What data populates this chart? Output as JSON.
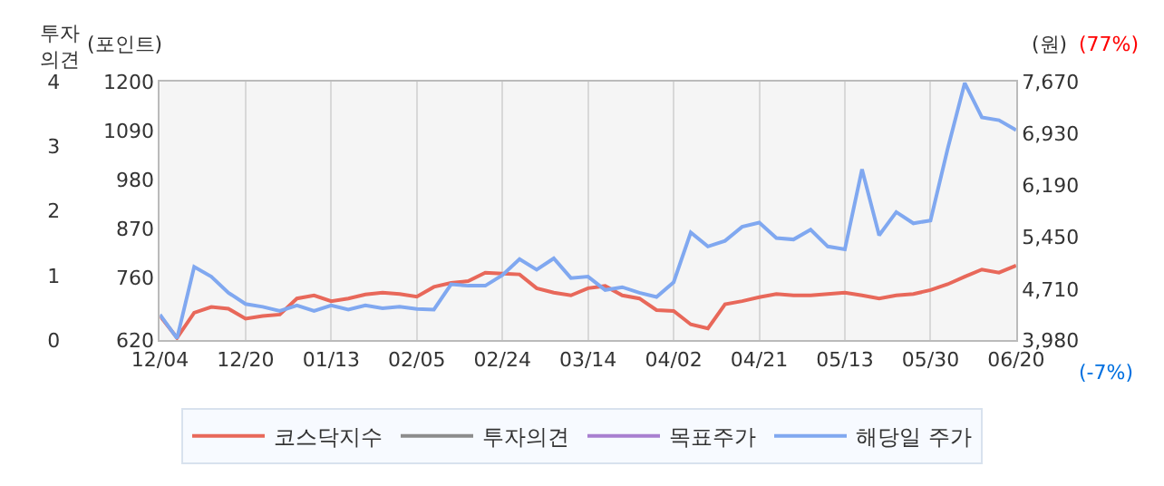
{
  "chart_data": {
    "type": "line",
    "categories": [
      "12/04",
      null,
      null,
      null,
      null,
      "12/20",
      null,
      null,
      null,
      null,
      "01/13",
      null,
      null,
      null,
      null,
      "02/05",
      null,
      null,
      null,
      null,
      "02/24",
      null,
      null,
      null,
      null,
      "03/14",
      null,
      null,
      null,
      null,
      "04/02",
      null,
      null,
      null,
      null,
      "04/21",
      null,
      null,
      null,
      null,
      "05/13",
      null,
      null,
      null,
      null,
      "05/30",
      null,
      null,
      null,
      null,
      "06/20"
    ],
    "ylabel": "투자\n의견",
    "y2label": "(포인트)",
    "y3label": "(원)",
    "ylim": [
      0,
      4
    ],
    "yticks": [
      0,
      1,
      2,
      3,
      4
    ],
    "y2lim": [
      620,
      1200
    ],
    "y2ticks": [
      620,
      760,
      870,
      980,
      1090,
      1200
    ],
    "y3lim": [
      3980,
      7670
    ],
    "y3ticks": [
      {
        "value": 3980,
        "label": "3,980"
      },
      {
        "value": 4710,
        "label": "4,710"
      },
      {
        "value": 5450,
        "label": "5,450"
      },
      {
        "value": 6190,
        "label": "6,190"
      },
      {
        "value": 6930,
        "label": "6,930"
      },
      {
        "value": 7670,
        "label": "7,670"
      }
    ],
    "series": [
      {
        "name": "코스닥지수",
        "color": "#e8685a",
        "axis": "y2",
        "values": [
          675,
          626,
          682,
          695,
          691,
          669,
          675,
          678,
          714,
          721,
          708,
          714,
          723,
          727,
          724,
          718,
          740,
          749,
          753,
          772,
          770,
          768,
          737,
          727,
          721,
          737,
          742,
          721,
          714,
          688,
          686,
          656,
          647,
          701,
          708,
          717,
          724,
          721,
          721,
          724,
          727,
          721,
          714,
          721,
          724,
          733,
          746,
          763,
          779,
          772,
          788
        ]
      },
      {
        "name": "투자의견",
        "color": "#8c8c8c",
        "axis": "y",
        "values": [
          null,
          null,
          null,
          null,
          null,
          null,
          null,
          null,
          null,
          null,
          null,
          null,
          null,
          null,
          null,
          null,
          null,
          null,
          null,
          null,
          null,
          null,
          null,
          null,
          null,
          null,
          null,
          null,
          null,
          null,
          null,
          null,
          null,
          null,
          null,
          null,
          null,
          null,
          null,
          null,
          null,
          null,
          null,
          null,
          null,
          null,
          null,
          null,
          null,
          null,
          null
        ]
      },
      {
        "name": "목표주가",
        "color": "#a87fd0",
        "axis": "y3",
        "values": [
          null,
          null,
          null,
          null,
          null,
          null,
          null,
          null,
          null,
          null,
          null,
          null,
          null,
          null,
          null,
          null,
          null,
          null,
          null,
          null,
          null,
          null,
          null,
          null,
          null,
          null,
          null,
          null,
          null,
          null,
          null,
          null,
          null,
          null,
          null,
          null,
          null,
          null,
          null,
          null,
          null,
          null,
          null,
          null,
          null,
          null,
          null,
          null,
          null,
          null,
          null
        ]
      },
      {
        "name": "해당일 주가",
        "color": "#80a8f0",
        "axis": "y3",
        "values": [
          4350,
          4010,
          5030,
          4890,
          4660,
          4500,
          4460,
          4400,
          4480,
          4400,
          4480,
          4420,
          4480,
          4440,
          4460,
          4430,
          4420,
          4780,
          4760,
          4760,
          4910,
          5140,
          4990,
          5150,
          4870,
          4890,
          4700,
          4740,
          4660,
          4600,
          4810,
          5520,
          5320,
          5400,
          5600,
          5660,
          5440,
          5420,
          5560,
          5320,
          5280,
          6420,
          5480,
          5810,
          5650,
          5690,
          6710,
          7650,
          7160,
          7120,
          6980
        ]
      }
    ],
    "annotations": [
      "(77%)",
      "(-7%)"
    ],
    "grid": "x",
    "legend": "bottom",
    "line_style": "solid",
    "marker": "none"
  }
}
